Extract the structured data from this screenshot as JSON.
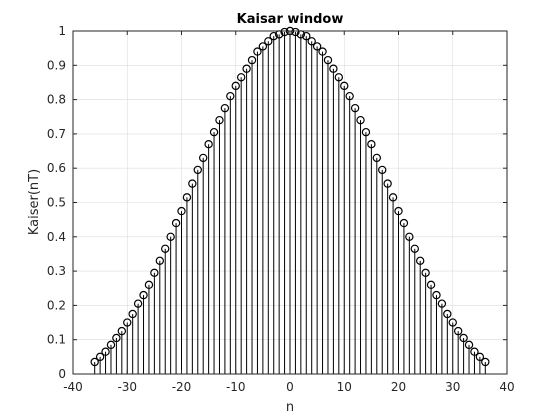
{
  "chart_data": {
    "type": "stem",
    "title": "Kaisar window",
    "xlabel": "n",
    "ylabel": "Kaiser(nT)",
    "xlim": [
      -40,
      40
    ],
    "ylim": [
      0,
      1
    ],
    "xticks": [
      "-40",
      "-30",
      "-20",
      "-10",
      "0",
      "10",
      "20",
      "30",
      "40"
    ],
    "yticks": [
      "0",
      "0.1",
      "0.2",
      "0.3",
      "0.4",
      "0.5",
      "0.6",
      "0.7",
      "0.8",
      "0.9",
      "1"
    ],
    "grid": true,
    "marker": "circle",
    "x": [
      -36,
      -35,
      -34,
      -33,
      -32,
      -31,
      -30,
      -29,
      -28,
      -27,
      -26,
      -25,
      -24,
      -23,
      -22,
      -21,
      -20,
      -19,
      -18,
      -17,
      -16,
      -15,
      -14,
      -13,
      -12,
      -11,
      -10,
      -9,
      -8,
      -7,
      -6,
      -5,
      -4,
      -3,
      -2,
      -1,
      0,
      1,
      2,
      3,
      4,
      5,
      6,
      7,
      8,
      9,
      10,
      11,
      12,
      13,
      14,
      15,
      16,
      17,
      18,
      19,
      20,
      21,
      22,
      23,
      24,
      25,
      26,
      27,
      28,
      29,
      30,
      31,
      32,
      33,
      34,
      35,
      36
    ],
    "y": [
      0.035,
      0.05,
      0.065,
      0.085,
      0.105,
      0.125,
      0.15,
      0.175,
      0.205,
      0.23,
      0.26,
      0.295,
      0.33,
      0.365,
      0.4,
      0.44,
      0.475,
      0.515,
      0.555,
      0.595,
      0.63,
      0.67,
      0.705,
      0.74,
      0.775,
      0.81,
      0.84,
      0.865,
      0.89,
      0.915,
      0.94,
      0.955,
      0.97,
      0.985,
      0.99,
      0.997,
      1.0,
      0.997,
      0.99,
      0.985,
      0.97,
      0.955,
      0.94,
      0.915,
      0.89,
      0.865,
      0.84,
      0.81,
      0.775,
      0.74,
      0.705,
      0.67,
      0.63,
      0.595,
      0.555,
      0.515,
      0.475,
      0.44,
      0.4,
      0.365,
      0.33,
      0.295,
      0.26,
      0.23,
      0.205,
      0.175,
      0.15,
      0.125,
      0.105,
      0.085,
      0.065,
      0.05,
      0.035
    ],
    "colors": {
      "stem": "#000000",
      "grid": "#dcdcdc",
      "axis": "#262626",
      "background": "#ffffff"
    }
  }
}
